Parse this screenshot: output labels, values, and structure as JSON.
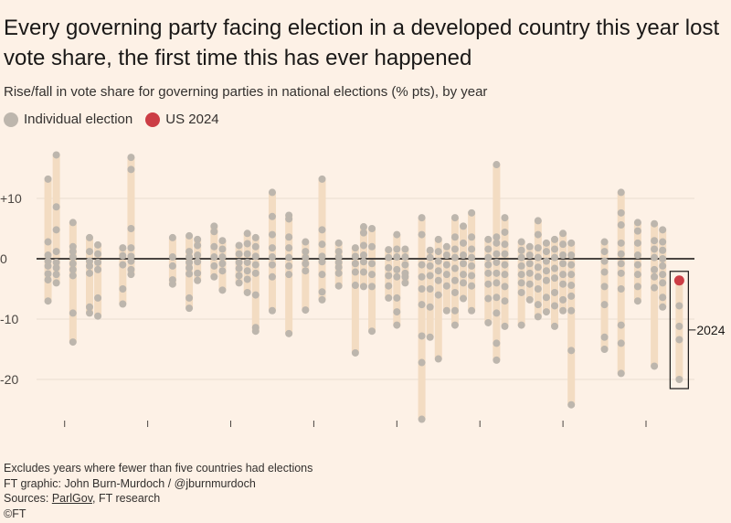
{
  "title": "Every governing party facing election in a developed country this year lost vote share, the first time this has ever happened",
  "subtitle": "Rise/fall in vote share for governing parties in national elections (% pts), by year",
  "legend": {
    "individual_label": "Individual election",
    "individual_color": "#bdb6ad",
    "us_label": "US 2024",
    "us_color": "#cc3d45"
  },
  "annotation": "2024",
  "footer": {
    "note": "Excludes years where fewer than five countries had elections",
    "graphic": "FT graphic: John Burn-Murdoch / @jburnmurdoch",
    "sources_prefix": "Sources: ",
    "sources_link": "ParlGov",
    "sources_suffix": ", FT research",
    "copyright": "©FT"
  },
  "colors": {
    "range_bar": "#f3dcc2",
    "zero_line": "#4a4541",
    "grid": "#e9ddd0",
    "axis_text": "#4a4541"
  },
  "chart_data": {
    "type": "scatter",
    "x_ticks": [
      1950,
      1960,
      1970,
      1980,
      1990,
      2000,
      2010,
      2020
    ],
    "y_ticks": [
      10,
      0,
      -10,
      -20
    ],
    "y_tick_labels": [
      "+10",
      "0",
      "-10",
      "-20"
    ],
    "xlim": [
      1947.5,
      2025.5
    ],
    "ylim": [
      -27,
      17
    ],
    "highlight": {
      "year": 2024,
      "value": -3.6,
      "label": "US 2024"
    },
    "series": [
      {
        "year": 1948,
        "values": [
          13.2,
          2.8,
          0.6,
          -0.4,
          -1.2,
          -2.5,
          -3.5,
          -7.0
        ]
      },
      {
        "year": 1949,
        "values": [
          17.2,
          8.6,
          4.8,
          1.2,
          -0.6,
          -1.5,
          -2.6,
          -4.0
        ]
      },
      {
        "year": 1951,
        "values": [
          6.0,
          2.0,
          1.2,
          0.3,
          -0.8,
          -1.8,
          -2.8,
          -9.0,
          -13.8
        ]
      },
      {
        "year": 1953,
        "values": [
          3.5,
          1.2,
          -0.4,
          -1.2,
          -2.4,
          -8.0,
          -9.0
        ]
      },
      {
        "year": 1954,
        "values": [
          2.3,
          0.8,
          -0.6,
          -1.8,
          -6.5,
          -9.5
        ]
      },
      {
        "year": 1957,
        "values": [
          1.8,
          0.5,
          -1.0,
          -5.0,
          -7.5
        ]
      },
      {
        "year": 1958,
        "values": [
          16.8,
          14.8,
          5.0,
          1.8,
          0.4,
          -0.4,
          -1.8,
          -2.6
        ]
      },
      {
        "year": 1963,
        "values": [
          3.5,
          0.3,
          -1.2,
          -3.5,
          -4.2
        ]
      },
      {
        "year": 1965,
        "values": [
          3.8,
          1.2,
          0.3,
          -0.6,
          -1.5,
          -2.5,
          -6.5,
          -8.2
        ]
      },
      {
        "year": 1966,
        "values": [
          3.2,
          2.2,
          0.6,
          -0.5,
          -2.4,
          -3.6
        ]
      },
      {
        "year": 1968,
        "values": [
          5.4,
          4.5,
          2.0,
          0.3,
          -1.2,
          -3.0
        ]
      },
      {
        "year": 1969,
        "values": [
          3.0,
          1.6,
          0.3,
          -0.8,
          -2.0,
          -5.2
        ]
      },
      {
        "year": 1971,
        "values": [
          2.2,
          0.8,
          -0.6,
          -1.6,
          -2.8,
          -4.0
        ]
      },
      {
        "year": 1972,
        "values": [
          4.2,
          2.5,
          0.8,
          -0.6,
          -2.0,
          -3.4,
          -5.6
        ]
      },
      {
        "year": 1973,
        "values": [
          3.5,
          2.0,
          0.4,
          -1.0,
          -2.4,
          -6.0,
          -11.4,
          -12.0
        ]
      },
      {
        "year": 1975,
        "values": [
          11.0,
          7.0,
          4.0,
          1.8,
          0.3,
          -1.0,
          -3.0,
          -8.6
        ]
      },
      {
        "year": 1977,
        "values": [
          7.2,
          6.6,
          3.6,
          1.8,
          0.2,
          -1.2,
          -2.6,
          -12.4
        ]
      },
      {
        "year": 1979,
        "values": [
          2.8,
          1.2,
          0.2,
          -0.8,
          -2.0,
          -8.5
        ]
      },
      {
        "year": 1981,
        "values": [
          13.2,
          4.8,
          2.4,
          0.4,
          -0.5,
          -2.6,
          -5.5,
          -6.8
        ]
      },
      {
        "year": 1983,
        "values": [
          2.6,
          1.2,
          0.3,
          -0.6,
          -1.4,
          -2.4,
          -4.5
        ]
      },
      {
        "year": 1985,
        "values": [
          1.8,
          0.4,
          -0.8,
          -2.2,
          -4.4,
          -15.6
        ]
      },
      {
        "year": 1986,
        "values": [
          5.3,
          4.3,
          2.2,
          0.6,
          -0.5,
          -2.2,
          -4.6
        ]
      },
      {
        "year": 1987,
        "values": [
          5.0,
          2.0,
          -0.8,
          -2.6,
          -4.6,
          -12.0
        ]
      },
      {
        "year": 1989,
        "values": [
          1.5,
          0.2,
          -1.5,
          -2.8,
          -4.5,
          -6.5
        ]
      },
      {
        "year": 1990,
        "values": [
          4.0,
          1.6,
          0.3,
          -1.8,
          -3.0,
          -6.5,
          -8.8,
          -11.0
        ]
      },
      {
        "year": 1991,
        "values": [
          1.6,
          0.3,
          -1.0,
          -2.4,
          -3.0,
          -4.0
        ]
      },
      {
        "year": 1993,
        "values": [
          6.8,
          4.0,
          -1.0,
          -3.0,
          -5.0,
          -7.6,
          -12.8,
          -17.2,
          -26.6
        ]
      },
      {
        "year": 1994,
        "values": [
          1.4,
          0.2,
          -1.2,
          -2.8,
          -5.0,
          -8.0,
          -13.0
        ]
      },
      {
        "year": 1995,
        "values": [
          3.2,
          1.2,
          -0.4,
          -2.0,
          -3.6,
          -6.0,
          -16.6
        ]
      },
      {
        "year": 1996,
        "values": [
          2.0,
          0.6,
          -1.0,
          -2.6,
          -4.5,
          -8.6
        ]
      },
      {
        "year": 1997,
        "values": [
          6.8,
          3.6,
          1.6,
          0.2,
          -1.6,
          -3.6,
          -5.6,
          -8.6,
          -11.0
        ]
      },
      {
        "year": 1998,
        "values": [
          5.4,
          2.6,
          0.6,
          -0.8,
          -2.6,
          -4.0,
          -6.6
        ]
      },
      {
        "year": 1999,
        "values": [
          7.6,
          3.6,
          1.6,
          0.2,
          -1.2,
          -2.8,
          -4.5,
          -8.6
        ]
      },
      {
        "year": 2001,
        "values": [
          3.2,
          1.6,
          0.2,
          -1.0,
          -2.4,
          -4.2,
          -6.6,
          -10.6
        ]
      },
      {
        "year": 2002,
        "values": [
          15.6,
          3.6,
          2.6,
          0.8,
          -0.6,
          -2.4,
          -4.0,
          -6.4,
          -9.0,
          -14.0,
          -16.8
        ]
      },
      {
        "year": 2003,
        "values": [
          6.8,
          4.4,
          2.4,
          0.8,
          -1.0,
          -2.6,
          -4.6,
          -7.0,
          -11.2
        ]
      },
      {
        "year": 2005,
        "values": [
          2.8,
          1.4,
          0.2,
          -1.2,
          -2.6,
          -4.0,
          -5.6,
          -11.0
        ]
      },
      {
        "year": 2006,
        "values": [
          2.0,
          0.6,
          -0.8,
          -2.4,
          -4.2,
          -6.8
        ]
      },
      {
        "year": 2007,
        "values": [
          6.3,
          4.0,
          1.8,
          0.2,
          -1.4,
          -3.0,
          -5.0,
          -7.6,
          -9.6
        ]
      },
      {
        "year": 2008,
        "values": [
          2.6,
          1.2,
          -0.4,
          -2.0,
          -3.6,
          -6.4,
          -8.8
        ]
      },
      {
        "year": 2009,
        "values": [
          3.2,
          1.6,
          0.2,
          -1.6,
          -3.2,
          -5.6,
          -7.8,
          -11.2
        ]
      },
      {
        "year": 2010,
        "values": [
          4.2,
          2.4,
          0.6,
          -0.8,
          -2.6,
          -4.2,
          -6.8,
          -8.6
        ]
      },
      {
        "year": 2011,
        "values": [
          2.6,
          0.6,
          -1.0,
          -2.6,
          -4.4,
          -6.2,
          -8.6,
          -15.2,
          -24.2
        ]
      },
      {
        "year": 2015,
        "values": [
          2.8,
          1.2,
          -0.4,
          -2.2,
          -4.6,
          -7.6,
          -13.0,
          -15.0
        ]
      },
      {
        "year": 2017,
        "values": [
          11.0,
          7.6,
          5.6,
          2.6,
          0.8,
          -0.8,
          -2.4,
          -5.0,
          -11.0,
          -14.0,
          -19.0
        ]
      },
      {
        "year": 2019,
        "values": [
          6.0,
          4.6,
          2.6,
          0.6,
          -1.0,
          -2.6,
          -4.6,
          -7.0
        ]
      },
      {
        "year": 2021,
        "values": [
          5.8,
          3.0,
          1.6,
          0.2,
          -1.8,
          -3.0,
          -4.8,
          -17.8
        ]
      },
      {
        "year": 2022,
        "values": [
          4.8,
          2.8,
          1.4,
          0.0,
          -1.2,
          -2.6,
          -4.0,
          -6.4,
          -8.0
        ]
      },
      {
        "year": 2024,
        "values": [
          -3.6,
          -7.8,
          -11.2,
          -13.4,
          -20.0
        ]
      }
    ]
  }
}
